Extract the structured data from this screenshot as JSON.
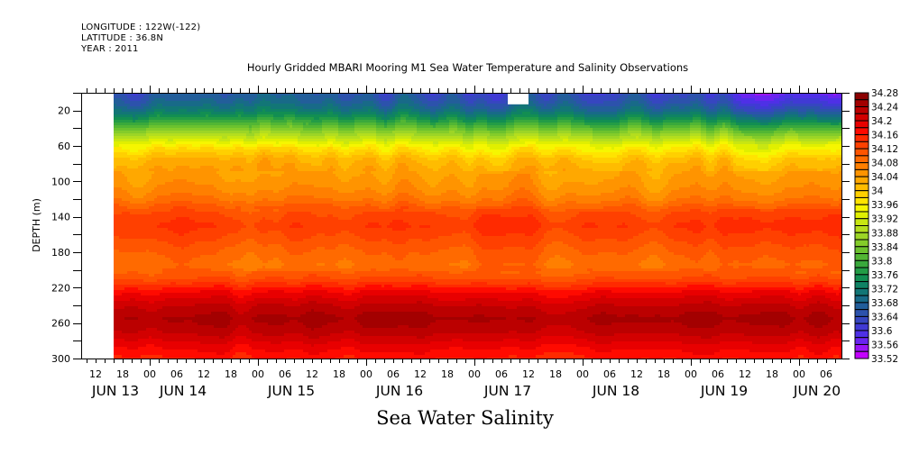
{
  "header": {
    "longitude": "LONGITUDE : 122W(-122)",
    "latitude": "LATITUDE : 36.8N",
    "year": "YEAR : 2011"
  },
  "chart_data": {
    "type": "heatmap",
    "title": "Hourly Gridded MBARI Mooring M1 Sea Water Temperature and Salinity Observations",
    "xlabel": "Sea Water Salinity",
    "ylabel": "DEPTH (m)",
    "x_range": [
      "JUN 13 08:48",
      "JUN 20 09:24"
    ],
    "data_start": "JUN 13 16:00",
    "y_range": [
      0,
      300
    ],
    "y_inverted": true,
    "y_ticks": [
      20,
      60,
      100,
      140,
      180,
      220,
      260,
      300
    ],
    "x_hour_ticks": [
      "12",
      "18",
      "00",
      "06",
      "12",
      "18",
      "00",
      "06",
      "12",
      "18",
      "00",
      "06",
      "12",
      "18",
      "00",
      "06",
      "12",
      "18",
      "00",
      "06",
      "12",
      "18",
      "00",
      "06",
      "12",
      "18",
      "00",
      "06"
    ],
    "x_day_labels": [
      "JUN 13",
      "JUN 14",
      "JUN 15",
      "JUN 16",
      "JUN 17",
      "JUN 18",
      "JUN 19",
      "JUN 20"
    ],
    "colorbar": {
      "min": 33.52,
      "max": 34.28,
      "step": 0.02,
      "labels": [
        "34.28",
        "34.24",
        "34.2",
        "34.16",
        "34.12",
        "34.08",
        "34.04",
        "34",
        "33.96",
        "33.92",
        "33.88",
        "33.84",
        "33.8",
        "33.76",
        "33.72",
        "33.68",
        "33.64",
        "33.6",
        "33.56",
        "33.52"
      ],
      "colors": [
        "#8b0000",
        "#a30000",
        "#bb0000",
        "#d20000",
        "#e80000",
        "#ff0a00",
        "#ff2a00",
        "#ff4000",
        "#ff5500",
        "#ff6a00",
        "#ff7f00",
        "#ff9400",
        "#ffa800",
        "#ffbc00",
        "#ffd000",
        "#ffe400",
        "#f6f600",
        "#e0ef00",
        "#c8e612",
        "#b4de1e",
        "#9cd526",
        "#84cc2a",
        "#6cc22e",
        "#52b634",
        "#3aa93c",
        "#239c46",
        "#128e52",
        "#0f8264",
        "#127676",
        "#186a88",
        "#225e9a",
        "#2c52ac",
        "#3646c0",
        "#403ad4",
        "#4e30e6",
        "#6a24f0",
        "#9a14f6",
        "#c400ff"
      ]
    },
    "depth_profile": {
      "depth": [
        0,
        10,
        20,
        30,
        45,
        60,
        75,
        90,
        105,
        120,
        135,
        150,
        165,
        180,
        195,
        210,
        225,
        240,
        255,
        270,
        285,
        300
      ],
      "salinity": [
        33.64,
        33.66,
        33.7,
        33.76,
        33.86,
        33.95,
        34.01,
        34.035,
        34.05,
        34.075,
        34.12,
        34.14,
        34.12,
        34.1,
        34.085,
        34.12,
        34.18,
        34.22,
        34.245,
        34.225,
        34.19,
        34.16
      ]
    },
    "missing_gap": {
      "start": "JUN 17 08:00",
      "end": "JUN 17 12:30",
      "depth": [
        0,
        12
      ]
    }
  }
}
